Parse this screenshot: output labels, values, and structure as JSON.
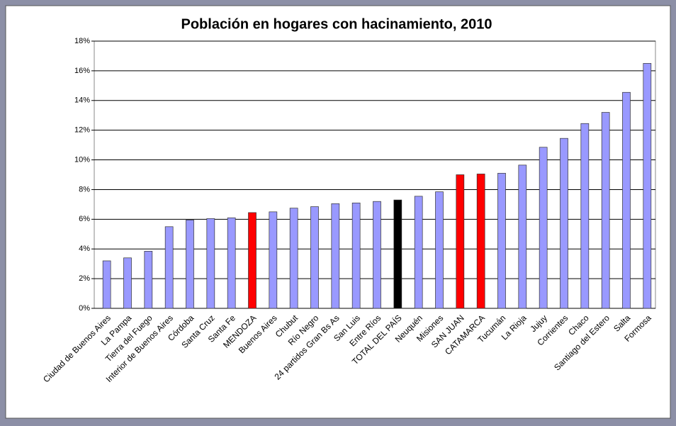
{
  "chart_data": {
    "type": "bar",
    "title": "Población en hogares con hacinamiento, 2010",
    "categories": [
      "Ciudad de Buenos Aires",
      "La Pampa",
      "Tierra del Fuego",
      "Interior de Buenos Aires",
      "Córdoba",
      "Santa Cruz",
      "Santa Fe",
      "MENDOZA",
      "Buenos Aires",
      "Chubut",
      "Río Negro",
      "24 partidos Gran Bs As",
      "San Luis",
      "Entre Ríos",
      "TOTAL DEL PAÍS",
      "Neuquén",
      "Misiones",
      "SAN JUAN",
      "CATAMARCA",
      "Tucumán",
      "La Rioja",
      "Jujuy",
      "Corrientes",
      "Chaco",
      "Santiago del Estero",
      "Salta",
      "Formosa"
    ],
    "values": [
      3.2,
      3.4,
      3.85,
      5.5,
      5.95,
      6.05,
      6.1,
      6.45,
      6.5,
      6.75,
      6.85,
      7.05,
      7.1,
      7.2,
      7.3,
      7.55,
      7.85,
      9.0,
      9.05,
      9.1,
      9.65,
      10.85,
      11.45,
      12.45,
      13.2,
      14.55,
      16.5
    ],
    "colors": [
      "#9999ff",
      "#9999ff",
      "#9999ff",
      "#9999ff",
      "#9999ff",
      "#9999ff",
      "#9999ff",
      "#ff0000",
      "#9999ff",
      "#9999ff",
      "#9999ff",
      "#9999ff",
      "#9999ff",
      "#9999ff",
      "#000000",
      "#9999ff",
      "#9999ff",
      "#ff0000",
      "#ff0000",
      "#9999ff",
      "#9999ff",
      "#9999ff",
      "#9999ff",
      "#9999ff",
      "#9999ff",
      "#9999ff",
      "#9999ff"
    ],
    "ylim": [
      0,
      18
    ],
    "yticks": [
      {
        "value": 0,
        "label": "0%"
      },
      {
        "value": 2,
        "label": "2%"
      },
      {
        "value": 4,
        "label": "4%"
      },
      {
        "value": 6,
        "label": "6%"
      },
      {
        "value": 8,
        "label": "8%"
      },
      {
        "value": 10,
        "label": "10%"
      },
      {
        "value": 12,
        "label": "12%"
      },
      {
        "value": 14,
        "label": "14%"
      },
      {
        "value": 16,
        "label": "16%"
      },
      {
        "value": 18,
        "label": "18%"
      }
    ],
    "grid": true
  }
}
